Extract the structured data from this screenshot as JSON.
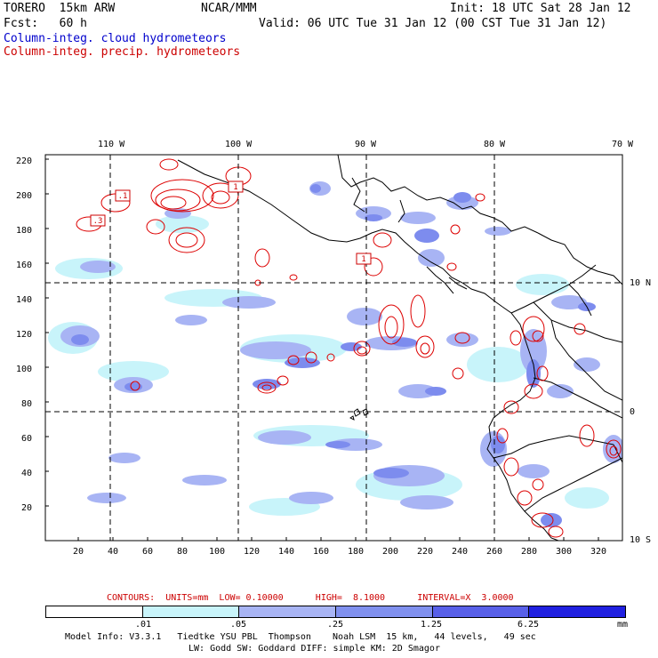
{
  "header": {
    "model": "TORERO  15km ARW",
    "center": "NCAR/MMM",
    "init": "Init: 18 UTC Sat 28 Jan 12",
    "fcst": "Fcst:   60 h",
    "valid": "Valid: 06 UTC Tue 31 Jan 12 (00 CST Tue 31 Jan 12)",
    "field_cloud": "Column-integ. cloud hydrometeors",
    "field_precip": "Column-integ. precip. hydrometeors"
  },
  "map": {
    "x_ticks": [
      "20",
      "40",
      "60",
      "80",
      "100",
      "120",
      "140",
      "160",
      "180",
      "200",
      "220",
      "240",
      "260",
      "280",
      "300",
      "320"
    ],
    "y_ticks": [
      "20",
      "40",
      "60",
      "80",
      "100",
      "120",
      "140",
      "160",
      "180",
      "200",
      "220"
    ],
    "lon_labels": [
      "110 W",
      "100 W",
      "90 W",
      "80 W",
      "70 W"
    ],
    "lat_labels": [
      "10 N",
      "0",
      "10 S"
    ],
    "boxed_labels": [
      ".1",
      ".3",
      "1",
      "1"
    ],
    "colors": {
      "cloud_light": "#b8f0f8",
      "cloud_mid": "#9aa8f0",
      "cloud_dark": "#6a78e8",
      "precip_contour": "#dd0000",
      "land": "#000000"
    }
  },
  "contour_info": {
    "label": "CONTOURS:  UNITS=mm  LOW= 0.10000      HIGH=  8.1000      INTERVAL=X  3.0000"
  },
  "colorbar": {
    "labels": [
      ".01",
      ".05",
      ".25",
      "1.25",
      "6.25"
    ],
    "units": "mm",
    "colors": [
      "#ffffff",
      "#c8f4fa",
      "#a8b4f4",
      "#8090ee",
      "#5860e8",
      "#2020e0"
    ]
  },
  "footer": {
    "line1": "Model Info: V3.3.1   Tiedtke YSU PBL  Thompson    Noah LSM  15 km,   44 levels,   49 sec",
    "line2": "LW: Godd SW: Goddard DIFF: simple KM: 2D Smagor"
  }
}
